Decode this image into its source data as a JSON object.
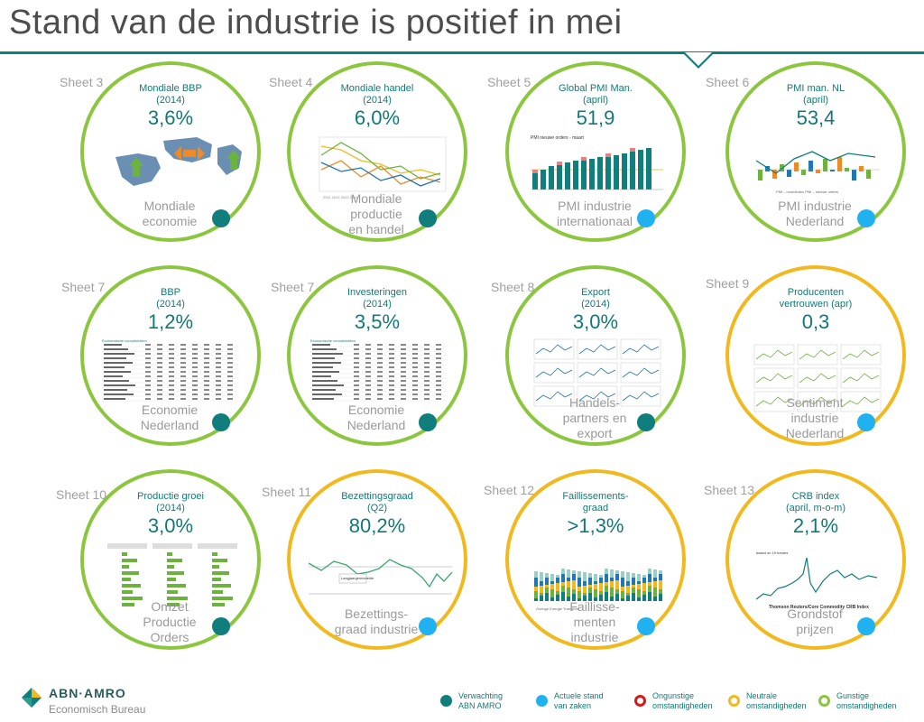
{
  "page": {
    "title": "Stand van de industrie is positief in mei"
  },
  "cards": [
    {
      "sheet": "Sheet 3",
      "title": "Mondiale BBP\n(2014)",
      "value": "3,6%",
      "label": "Mondiale\neconomie",
      "ring": "green",
      "dot": "teal"
    },
    {
      "sheet": "Sheet 4",
      "title": "Mondiale handel\n(2014)",
      "value": "6,0%",
      "label": "Mondiale\nproductie\nen handel",
      "ring": "green",
      "dot": "teal"
    },
    {
      "sheet": "Sheet 5",
      "title": "Global PMI Man.\n(april)",
      "value": "51,9",
      "label": "PMI industrie\ninternationaal",
      "ring": "green",
      "dot": "blue"
    },
    {
      "sheet": "Sheet 6",
      "title": "PMI man. NL\n(april)",
      "value": "53,4",
      "label": "PMI industrie\nNederland",
      "ring": "green",
      "dot": "blue"
    },
    {
      "sheet": "Sheet 7",
      "title": "BBP\n(2014)",
      "value": "1,2%",
      "label": "Economie\nNederland",
      "ring": "green",
      "dot": "teal"
    },
    {
      "sheet": "Sheet 7",
      "title": "Investeringen\n(2014)",
      "value": "3,5%",
      "label": "Economie\nNederland",
      "ring": "green",
      "dot": "teal"
    },
    {
      "sheet": "Sheet 8",
      "title": "Export\n(2014)",
      "value": "3,0%",
      "label": "Handels-\npartners en\nexport",
      "ring": "green",
      "dot": "teal"
    },
    {
      "sheet": "Sheet 9",
      "title": "Producenten\nvertrouwen (apr)",
      "value": "0,3",
      "label": "Sentiment\nindustrie\nNederland",
      "ring": "yellow",
      "dot": "blue"
    },
    {
      "sheet": "Sheet 10",
      "title": "Productie groei\n(2014)",
      "value": "3,0%",
      "label": "Omzet\nProductie\nOrders",
      "ring": "green",
      "dot": "teal"
    },
    {
      "sheet": "Sheet 11",
      "title": "Bezettingsgraad\n(Q2)",
      "value": "80,2%",
      "label": "Bezettings-\ngraad industrie",
      "ring": "yellow",
      "dot": "blue"
    },
    {
      "sheet": "Sheet 12",
      "title": "Faillissements-\ngraad",
      "value": ">1,3%",
      "label": "Faillisse-\nmenten\nindustrie",
      "ring": "yellow",
      "dot": "blue"
    },
    {
      "sheet": "Sheet 13",
      "title": "CRB index\n(april, m-o-m)",
      "value": "2,1%",
      "label": "Grondstof\nprijzen",
      "ring": "yellow",
      "dot": "blue"
    }
  ],
  "legend": [
    {
      "label": "Verwachting\nABN AMRO",
      "kind": "teal"
    },
    {
      "label": "Actuele stand\nvan zaken",
      "kind": "blue"
    },
    {
      "label": "Ongunstige\nomstandigheden",
      "kind": "red-ring"
    },
    {
      "label": "Neutrale\nomstandigheden",
      "kind": "yellow-ring"
    },
    {
      "label": "Gunstige\nomstandigheden",
      "kind": "green-ring"
    }
  ],
  "logo": {
    "name": "ABN·AMRO",
    "sub": "Economisch Bureau"
  },
  "colors": {
    "teal": "#0f7e7c",
    "blue": "#1fb1f0",
    "green": "#8cc63f",
    "yellow": "#f2b91f",
    "red": "#d7191c"
  }
}
